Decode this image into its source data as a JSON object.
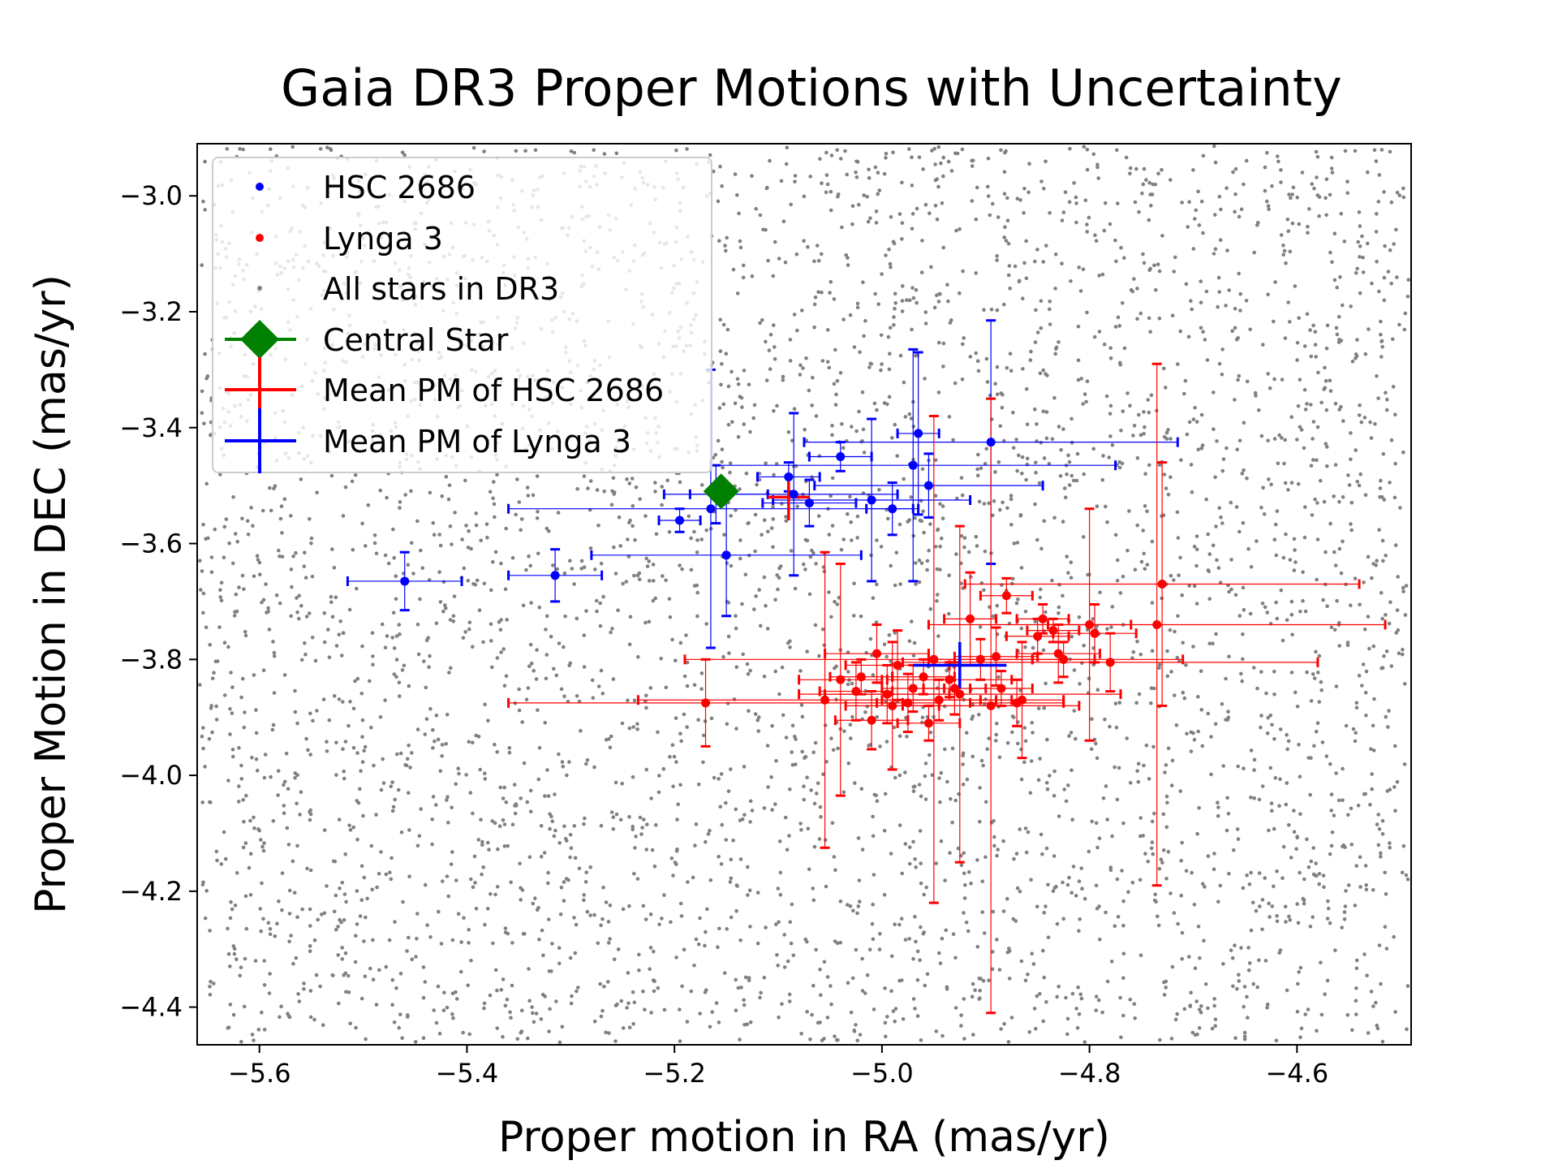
{
  "chart_data": {
    "type": "scatter",
    "title": "Gaia DR3 Proper Motions with Uncertainty",
    "xlabel": "Proper motion in RA (mas/yr)",
    "ylabel": "Proper Motion in DEC (mas/yr)",
    "xlim": [
      -5.66,
      -4.49
    ],
    "ylim": [
      -4.465,
      -2.91
    ],
    "xticks": [
      -5.6,
      -5.4,
      -5.2,
      -5.0,
      -4.8,
      -4.6
    ],
    "xtick_labels": [
      "−5.6",
      "−5.4",
      "−5.2",
      "−5.0",
      "−4.8",
      "−4.6"
    ],
    "yticks": [
      -3.0,
      -3.2,
      -3.4,
      -3.6,
      -3.8,
      -4.0,
      -4.2,
      -4.4
    ],
    "ytick_labels": [
      "−3.0",
      "−3.2",
      "−3.4",
      "−3.6",
      "−3.8",
      "−4.0",
      "−4.2",
      "−4.4"
    ],
    "grid": false,
    "legend_position": "upper-left",
    "colors": {
      "hsc": "#0000ff",
      "lynga": "#ff0000",
      "background": "#808080",
      "central": "#008000"
    },
    "legend": [
      {
        "label": "HSC 2686",
        "marker": "dot",
        "color": "#0000ff"
      },
      {
        "label": "Lynga 3",
        "marker": "dot",
        "color": "#ff0000"
      },
      {
        "label": "All stars in DR3",
        "marker": "dot",
        "color": "#808080"
      },
      {
        "label": "Central Star",
        "marker": "diamond",
        "color": "#008000"
      },
      {
        "label": "Mean PM of HSC 2686",
        "marker": "errorbar",
        "color": "#ff0000"
      },
      {
        "label": "Mean PM of Lynga 3",
        "marker": "errorbar",
        "color": "#0000ff"
      }
    ],
    "central_star": {
      "x": -5.155,
      "y": -3.51
    },
    "mean_hsc_2686": {
      "x": -5.09,
      "y": -3.52,
      "xerr": 0.02,
      "yerr": 0.04
    },
    "mean_lynga_3": {
      "x": -4.925,
      "y": -3.81,
      "xerr": 0.045,
      "yerr": 0.04
    },
    "background_count": 4200,
    "series": [
      {
        "name": "HSC 2686",
        "color": "#0000ff",
        "points": [
          {
            "x": -5.46,
            "y": -3.665,
            "xerr": 0.055,
            "yerr": 0.05
          },
          {
            "x": -5.315,
            "y": -3.655,
            "xerr": 0.045,
            "yerr": 0.045
          },
          {
            "x": -5.195,
            "y": -3.56,
            "xerr": 0.02,
            "yerr": 0.02
          },
          {
            "x": -5.165,
            "y": -3.54,
            "xerr": 0.195,
            "yerr": 0.24
          },
          {
            "x": -5.16,
            "y": -3.515,
            "xerr": 0.05,
            "yerr": 0.05
          },
          {
            "x": -5.15,
            "y": -3.62,
            "xerr": 0.13,
            "yerr": 0.105
          },
          {
            "x": -5.09,
            "y": -3.485,
            "xerr": 0.03,
            "yerr": 0.025
          },
          {
            "x": -5.085,
            "y": -3.515,
            "xerr": 0.1,
            "yerr": 0.14
          },
          {
            "x": -5.07,
            "y": -3.53,
            "xerr": 0.045,
            "yerr": 0.04
          },
          {
            "x": -5.04,
            "y": -3.45,
            "xerr": 0.03,
            "yerr": 0.025
          },
          {
            "x": -5.01,
            "y": -3.525,
            "xerr": 0.095,
            "yerr": 0.14
          },
          {
            "x": -4.99,
            "y": -3.54,
            "xerr": 0.025,
            "yerr": 0.045
          },
          {
            "x": -4.97,
            "y": -3.465,
            "xerr": 0.195,
            "yerr": 0.2
          },
          {
            "x": -4.965,
            "y": -3.41,
            "xerr": 0.02,
            "yerr": 0.14
          },
          {
            "x": -4.955,
            "y": -3.5,
            "xerr": 0.11,
            "yerr": 0.055
          },
          {
            "x": -4.895,
            "y": -3.425,
            "xerr": 0.18,
            "yerr": 0.21
          }
        ]
      },
      {
        "name": "Lynga 3",
        "color": "#ff0000",
        "points": [
          {
            "x": -5.17,
            "y": -3.875,
            "xerr": 0.19,
            "yerr": 0.075
          },
          {
            "x": -5.055,
            "y": -3.87,
            "xerr": 0.18,
            "yerr": 0.255
          },
          {
            "x": -5.04,
            "y": -3.835,
            "xerr": 0.04,
            "yerr": 0.2
          },
          {
            "x": -5.025,
            "y": -3.855,
            "xerr": 0.035,
            "yerr": 0.05
          },
          {
            "x": -5.02,
            "y": -3.83,
            "xerr": 0.03,
            "yerr": 0.03
          },
          {
            "x": -5.01,
            "y": -3.905,
            "xerr": 0.035,
            "yerr": 0.05
          },
          {
            "x": -5.005,
            "y": -3.79,
            "xerr": 0.05,
            "yerr": 0.05
          },
          {
            "x": -4.995,
            "y": -3.86,
            "xerr": 0.06,
            "yerr": 0.05
          },
          {
            "x": -4.99,
            "y": -3.88,
            "xerr": 0.045,
            "yerr": 0.11
          },
          {
            "x": -4.985,
            "y": -3.81,
            "xerr": 0.05,
            "yerr": 0.06
          },
          {
            "x": -4.975,
            "y": -3.875,
            "xerr": 0.03,
            "yerr": 0.05
          },
          {
            "x": -4.97,
            "y": -3.85,
            "xerr": 0.03,
            "yerr": 0.04
          },
          {
            "x": -4.96,
            "y": -3.83,
            "xerr": 0.03,
            "yerr": 0.03
          },
          {
            "x": -4.955,
            "y": -3.91,
            "xerr": 0.03,
            "yerr": 0.03
          },
          {
            "x": -4.95,
            "y": -3.8,
            "xerr": 0.24,
            "yerr": 0.42
          },
          {
            "x": -4.945,
            "y": -3.87,
            "xerr": 0.055,
            "yerr": 0.035
          },
          {
            "x": -4.935,
            "y": -3.835,
            "xerr": 0.06,
            "yerr": 0.03
          },
          {
            "x": -4.93,
            "y": -3.85,
            "xerr": 0.03,
            "yerr": 0.045
          },
          {
            "x": -4.925,
            "y": -3.86,
            "xerr": 0.155,
            "yerr": 0.29
          },
          {
            "x": -4.915,
            "y": -3.73,
            "xerr": 0.025,
            "yerr": 0.08
          },
          {
            "x": -4.905,
            "y": -3.8,
            "xerr": 0.05,
            "yerr": 0.035
          },
          {
            "x": -4.895,
            "y": -3.88,
            "xerr": 0.085,
            "yerr": 0.53
          },
          {
            "x": -4.89,
            "y": -3.795,
            "xerr": 0.04,
            "yerr": 0.05
          },
          {
            "x": -4.885,
            "y": -3.85,
            "xerr": 0.03,
            "yerr": 0.03
          },
          {
            "x": -4.88,
            "y": -3.69,
            "xerr": 0.025,
            "yerr": 0.03
          },
          {
            "x": -4.87,
            "y": -3.875,
            "xerr": 0.045,
            "yerr": 0.04
          },
          {
            "x": -4.865,
            "y": -3.87,
            "xerr": 0.04,
            "yerr": 0.1
          },
          {
            "x": -4.85,
            "y": -3.76,
            "xerr": 0.03,
            "yerr": 0.03
          },
          {
            "x": -4.845,
            "y": -3.73,
            "xerr": 0.025,
            "yerr": 0.025
          },
          {
            "x": -4.835,
            "y": -3.75,
            "xerr": 0.025,
            "yerr": 0.02
          },
          {
            "x": -4.83,
            "y": -3.79,
            "xerr": 0.04,
            "yerr": 0.05
          },
          {
            "x": -4.825,
            "y": -3.8,
            "xerr": 0.03,
            "yerr": 0.03
          },
          {
            "x": -4.8,
            "y": -3.74,
            "xerr": 0.04,
            "yerr": 0.2
          },
          {
            "x": -4.795,
            "y": -3.755,
            "xerr": 0.04,
            "yerr": 0.05
          },
          {
            "x": -4.78,
            "y": -3.805,
            "xerr": 0.2,
            "yerr": 0.05
          },
          {
            "x": -4.735,
            "y": -3.74,
            "xerr": 0.22,
            "yerr": 0.45
          },
          {
            "x": -4.73,
            "y": -3.67,
            "xerr": 0.19,
            "yerr": 0.21
          }
        ]
      }
    ]
  }
}
